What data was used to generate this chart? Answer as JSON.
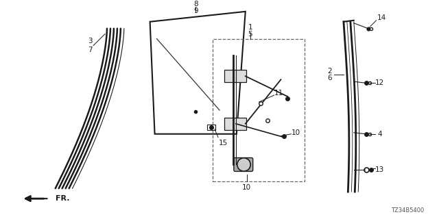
{
  "diagram_id": "TZ34B5400",
  "background": "#ffffff",
  "fig_width": 6.4,
  "fig_height": 3.2,
  "dpi": 100
}
